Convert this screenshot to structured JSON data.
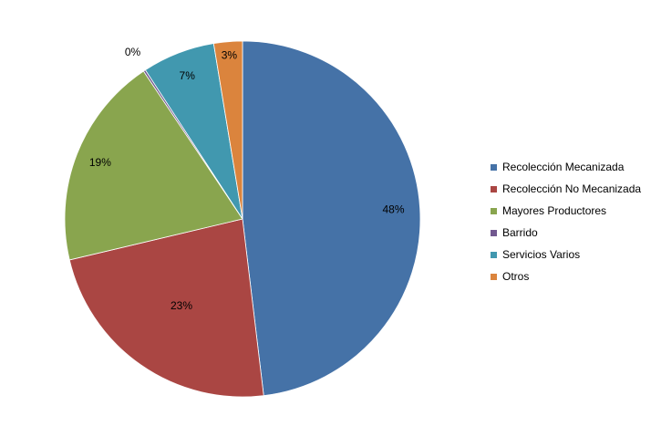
{
  "chart_data": {
    "type": "pie",
    "title": "",
    "start_angle_deg": 0,
    "direction": "clockwise",
    "legend_position": "right",
    "slices": [
      {
        "label": "Recolección Mecanizada",
        "value": 48.1,
        "display": "48%",
        "color": "#4572A7"
      },
      {
        "label": "Recolección No Mecanizada",
        "value": 23.2,
        "display": "23%",
        "color": "#AA4643"
      },
      {
        "label": "Mayores Productores",
        "value": 19.3,
        "display": "19%",
        "color": "#89A54E"
      },
      {
        "label": "Barrido",
        "value": 0.2,
        "display": "0%",
        "color": "#71588F"
      },
      {
        "label": "Servicios Varios",
        "value": 6.6,
        "display": "7%",
        "color": "#4198AF"
      },
      {
        "label": "Otros",
        "value": 2.6,
        "display": "3%",
        "color": "#DB843D"
      }
    ]
  }
}
